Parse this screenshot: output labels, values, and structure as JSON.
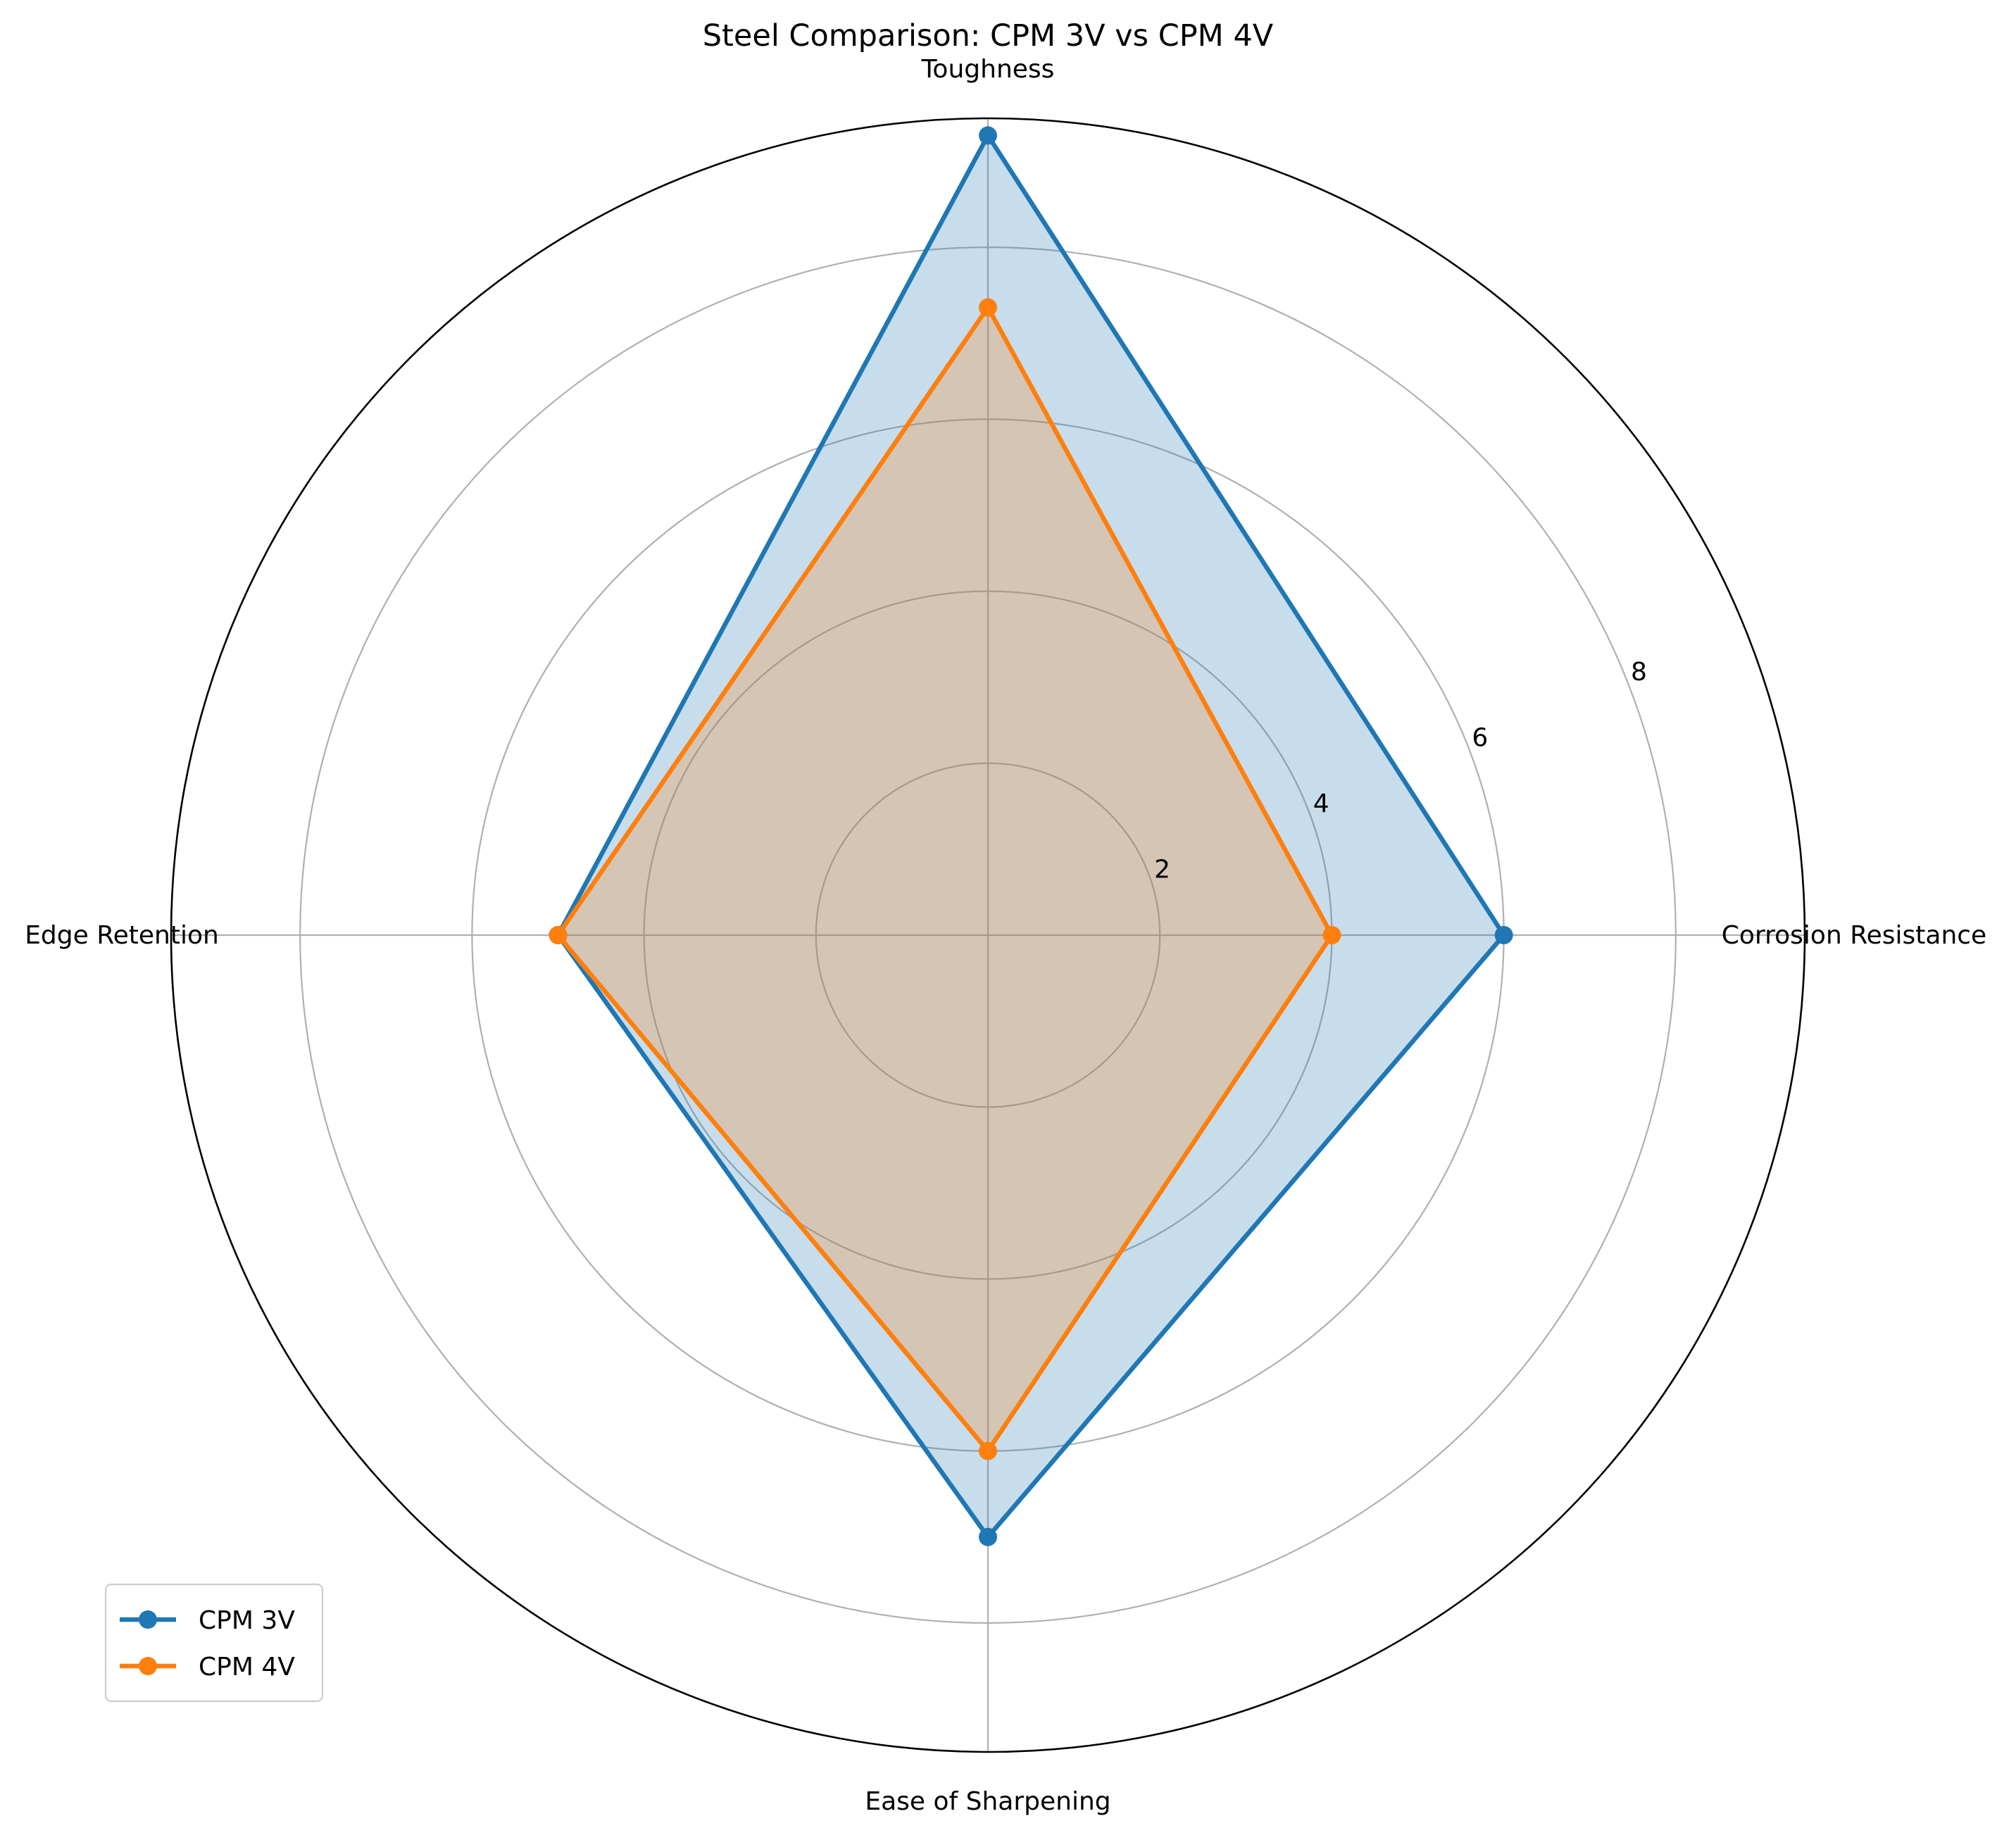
{
  "chart_data": {
    "type": "radar",
    "title": "Steel Comparison: CPM 3V vs CPM 4V",
    "categories": [
      "Corrosion Resistance",
      "Toughness",
      "Edge Retention",
      "Ease of Sharpening"
    ],
    "series": [
      {
        "name": "CPM 3V",
        "values": [
          6,
          9.3,
          5,
          7
        ],
        "color": "#1f77b4"
      },
      {
        "name": "CPM 4V",
        "values": [
          4,
          7.3,
          5,
          6
        ],
        "color": "#ff7f0e"
      }
    ],
    "r_ticks": [
      "2",
      "4",
      "6",
      "8"
    ],
    "r_max": 9.5,
    "grid": true,
    "legend_position": "lower-left"
  }
}
